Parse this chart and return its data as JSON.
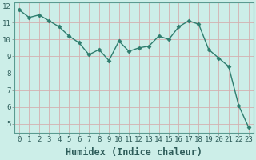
{
  "x": [
    0,
    1,
    2,
    3,
    4,
    5,
    6,
    7,
    8,
    9,
    10,
    11,
    12,
    13,
    14,
    15,
    16,
    17,
    18,
    19,
    20,
    21,
    22,
    23
  ],
  "y": [
    11.75,
    11.3,
    11.45,
    11.1,
    10.75,
    10.2,
    9.8,
    9.1,
    9.4,
    8.75,
    9.9,
    9.3,
    9.5,
    9.6,
    10.2,
    10.0,
    10.75,
    11.1,
    10.9,
    9.4,
    8.9,
    8.4,
    6.1,
    4.8
  ],
  "line_color": "#2e7d6e",
  "marker": "D",
  "marker_size": 2.5,
  "bg_color": "#cceee8",
  "grid_color_major": "#d4b0b0",
  "xlabel": "Humidex (Indice chaleur)",
  "ylim": [
    4.5,
    12.2
  ],
  "xlim": [
    -0.5,
    23.5
  ],
  "yticks": [
    5,
    6,
    7,
    8,
    9,
    10,
    11,
    12
  ],
  "xticks": [
    0,
    1,
    2,
    3,
    4,
    5,
    6,
    7,
    8,
    9,
    10,
    11,
    12,
    13,
    14,
    15,
    16,
    17,
    18,
    19,
    20,
    21,
    22,
    23
  ],
  "tick_label_fontsize": 6.5,
  "xlabel_fontsize": 8.5
}
